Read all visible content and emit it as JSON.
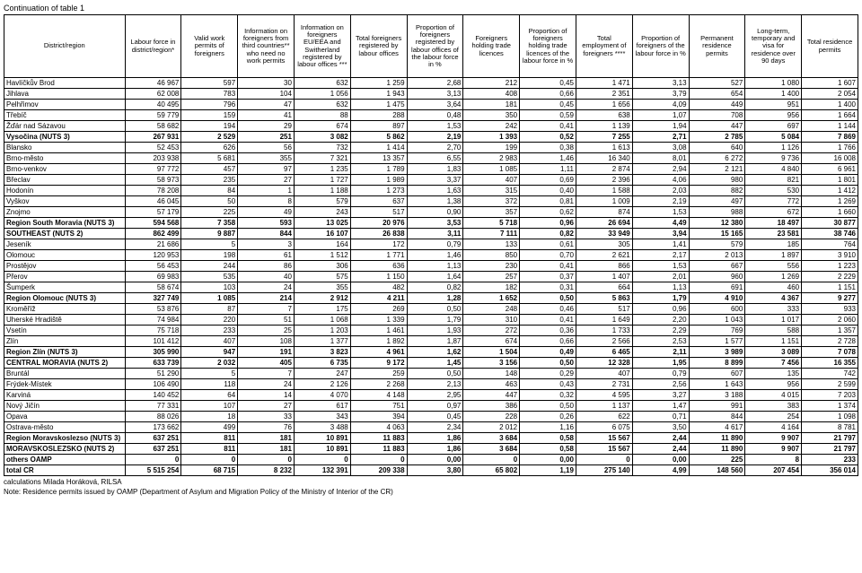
{
  "title": "Continuation of table 1",
  "columns": [
    "District/region",
    "Labour force in district/region*",
    "Valid work permits of foreigners",
    "Information on foreigners from third countries** who need no work permits",
    "Information on foreigners EU/EEA and Switherland registered by labour offices ***",
    "Total foreigners registered by labour offices",
    "Proportion of foreigners registered by labour offices of the labour force in %",
    "Foreigners holding trade licences",
    "Proportion of foreigners holding trade licences of the labour force in %",
    "Total employment of foreigners ****",
    "Proportion of foreigners of the labour force in %",
    "Permanent residence permits",
    "Long-term, temporary and visa for residence over 90 days",
    "Total residence permits"
  ],
  "rows": [
    {
      "b": false,
      "c": [
        "Havlíčkův Brod",
        "46 967",
        "597",
        "30",
        "632",
        "1 259",
        "2,68",
        "212",
        "0,45",
        "1 471",
        "3,13",
        "527",
        "1 080",
        "1 607"
      ]
    },
    {
      "b": false,
      "c": [
        "Jihlava",
        "62 008",
        "783",
        "104",
        "1 056",
        "1 943",
        "3,13",
        "408",
        "0,66",
        "2 351",
        "3,79",
        "654",
        "1 400",
        "2 054"
      ]
    },
    {
      "b": false,
      "c": [
        "Pelhřimov",
        "40 495",
        "796",
        "47",
        "632",
        "1 475",
        "3,64",
        "181",
        "0,45",
        "1 656",
        "4,09",
        "449",
        "951",
        "1 400"
      ]
    },
    {
      "b": false,
      "c": [
        "Třebíč",
        "59 779",
        "159",
        "41",
        "88",
        "288",
        "0,48",
        "350",
        "0,59",
        "638",
        "1,07",
        "708",
        "956",
        "1 664"
      ]
    },
    {
      "b": false,
      "c": [
        "Žďár nad Sázavou",
        "58 682",
        "194",
        "29",
        "674",
        "897",
        "1,53",
        "242",
        "0,41",
        "1 139",
        "1,94",
        "447",
        "697",
        "1 144"
      ]
    },
    {
      "b": true,
      "c": [
        "Vysočina (NUTS 3)",
        "267 931",
        "2 529",
        "251",
        "3 082",
        "5 862",
        "2,19",
        "1 393",
        "0,52",
        "7 255",
        "2,71",
        "2 785",
        "5 084",
        "7 869"
      ]
    },
    {
      "b": false,
      "c": [
        "Blansko",
        "52 453",
        "626",
        "56",
        "732",
        "1 414",
        "2,70",
        "199",
        "0,38",
        "1 613",
        "3,08",
        "640",
        "1 126",
        "1 766"
      ]
    },
    {
      "b": false,
      "c": [
        "Brno-město",
        "203 938",
        "5 681",
        "355",
        "7 321",
        "13 357",
        "6,55",
        "2 983",
        "1,46",
        "16 340",
        "8,01",
        "6 272",
        "9 736",
        "16 008"
      ]
    },
    {
      "b": false,
      "c": [
        "Brno-venkov",
        "97 772",
        "457",
        "97",
        "1 235",
        "1 789",
        "1,83",
        "1 085",
        "1,11",
        "2 874",
        "2,94",
        "2 121",
        "4 840",
        "6 961"
      ]
    },
    {
      "b": false,
      "c": [
        "Břeclav",
        "58 973",
        "235",
        "27",
        "1 727",
        "1 989",
        "3,37",
        "407",
        "0,69",
        "2 396",
        "4,06",
        "980",
        "821",
        "1 801"
      ]
    },
    {
      "b": false,
      "c": [
        "Hodonín",
        "78 208",
        "84",
        "1",
        "1 188",
        "1 273",
        "1,63",
        "315",
        "0,40",
        "1 588",
        "2,03",
        "882",
        "530",
        "1 412"
      ]
    },
    {
      "b": false,
      "c": [
        "Vyškov",
        "46 045",
        "50",
        "8",
        "579",
        "637",
        "1,38",
        "372",
        "0,81",
        "1 009",
        "2,19",
        "497",
        "772",
        "1 269"
      ]
    },
    {
      "b": false,
      "c": [
        "Znojmo",
        "57 179",
        "225",
        "49",
        "243",
        "517",
        "0,90",
        "357",
        "0,62",
        "874",
        "1,53",
        "988",
        "672",
        "1 660"
      ]
    },
    {
      "b": true,
      "c": [
        "Region South Moravia (NUTS 3)",
        "594 568",
        "7 358",
        "593",
        "13 025",
        "20 976",
        "3,53",
        "5 718",
        "0,96",
        "26 694",
        "4,49",
        "12 380",
        "18 497",
        "30 877"
      ]
    },
    {
      "b": true,
      "c": [
        "SOUTHEAST (NUTS 2)",
        "862 499",
        "9 887",
        "844",
        "16 107",
        "26 838",
        "3,11",
        "7 111",
        "0,82",
        "33 949",
        "3,94",
        "15 165",
        "23 581",
        "38 746"
      ]
    },
    {
      "b": false,
      "c": [
        "Jeseník",
        "21 686",
        "5",
        "3",
        "164",
        "172",
        "0,79",
        "133",
        "0,61",
        "305",
        "1,41",
        "579",
        "185",
        "764"
      ]
    },
    {
      "b": false,
      "c": [
        "Olomouc",
        "120 953",
        "198",
        "61",
        "1 512",
        "1 771",
        "1,46",
        "850",
        "0,70",
        "2 621",
        "2,17",
        "2 013",
        "1 897",
        "3 910"
      ]
    },
    {
      "b": false,
      "c": [
        "Prostějov",
        "56 453",
        "244",
        "86",
        "306",
        "636",
        "1,13",
        "230",
        "0,41",
        "866",
        "1,53",
        "667",
        "556",
        "1 223"
      ]
    },
    {
      "b": false,
      "c": [
        "Přerov",
        "69 983",
        "535",
        "40",
        "575",
        "1 150",
        "1,64",
        "257",
        "0,37",
        "1 407",
        "2,01",
        "960",
        "1 269",
        "2 229"
      ]
    },
    {
      "b": false,
      "c": [
        "Šumperk",
        "58 674",
        "103",
        "24",
        "355",
        "482",
        "0,82",
        "182",
        "0,31",
        "664",
        "1,13",
        "691",
        "460",
        "1 151"
      ]
    },
    {
      "b": true,
      "c": [
        "Region Olomouc (NUTS 3)",
        "327 749",
        "1 085",
        "214",
        "2 912",
        "4 211",
        "1,28",
        "1 652",
        "0,50",
        "5 863",
        "1,79",
        "4 910",
        "4 367",
        "9 277"
      ]
    },
    {
      "b": false,
      "c": [
        "Kroměříž",
        "53 876",
        "87",
        "7",
        "175",
        "269",
        "0,50",
        "248",
        "0,46",
        "517",
        "0,96",
        "600",
        "333",
        "933"
      ]
    },
    {
      "b": false,
      "c": [
        "Uherské Hradiště",
        "74 984",
        "220",
        "51",
        "1 068",
        "1 339",
        "1,79",
        "310",
        "0,41",
        "1 649",
        "2,20",
        "1 043",
        "1 017",
        "2 060"
      ]
    },
    {
      "b": false,
      "c": [
        "Vsetín",
        "75 718",
        "233",
        "25",
        "1 203",
        "1 461",
        "1,93",
        "272",
        "0,36",
        "1 733",
        "2,29",
        "769",
        "588",
        "1 357"
      ]
    },
    {
      "b": false,
      "c": [
        "Zlín",
        "101 412",
        "407",
        "108",
        "1 377",
        "1 892",
        "1,87",
        "674",
        "0,66",
        "2 566",
        "2,53",
        "1 577",
        "1 151",
        "2 728"
      ]
    },
    {
      "b": true,
      "c": [
        "Region Zlín (NUTS 3)",
        "305 990",
        "947",
        "191",
        "3 823",
        "4 961",
        "1,62",
        "1 504",
        "0,49",
        "6 465",
        "2,11",
        "3 989",
        "3 089",
        "7 078"
      ]
    },
    {
      "b": true,
      "c": [
        "CENTRAL MORAVIA (NUTS 2)",
        "633 739",
        "2 032",
        "405",
        "6 735",
        "9 172",
        "1,45",
        "3 156",
        "0,50",
        "12 328",
        "1,95",
        "8 899",
        "7 456",
        "16 355"
      ]
    },
    {
      "b": false,
      "c": [
        "Bruntál",
        "51 290",
        "5",
        "7",
        "247",
        "259",
        "0,50",
        "148",
        "0,29",
        "407",
        "0,79",
        "607",
        "135",
        "742"
      ]
    },
    {
      "b": false,
      "c": [
        "Frýdek-Místek",
        "106 490",
        "118",
        "24",
        "2 126",
        "2 268",
        "2,13",
        "463",
        "0,43",
        "2 731",
        "2,56",
        "1 643",
        "956",
        "2 599"
      ]
    },
    {
      "b": false,
      "c": [
        "Karviná",
        "140 452",
        "64",
        "14",
        "4 070",
        "4 148",
        "2,95",
        "447",
        "0,32",
        "4 595",
        "3,27",
        "3 188",
        "4 015",
        "7 203"
      ]
    },
    {
      "b": false,
      "c": [
        "Nový Jičín",
        "77 331",
        "107",
        "27",
        "617",
        "751",
        "0,97",
        "386",
        "0,50",
        "1 137",
        "1,47",
        "991",
        "383",
        "1 374"
      ]
    },
    {
      "b": false,
      "c": [
        "Opava",
        "88 026",
        "18",
        "33",
        "343",
        "394",
        "0,45",
        "228",
        "0,26",
        "622",
        "0,71",
        "844",
        "254",
        "1 098"
      ]
    },
    {
      "b": false,
      "c": [
        "Ostrava-město",
        "173 662",
        "499",
        "76",
        "3 488",
        "4 063",
        "2,34",
        "2 012",
        "1,16",
        "6 075",
        "3,50",
        "4 617",
        "4 164",
        "8 781"
      ]
    },
    {
      "b": true,
      "c": [
        "Region Moravskoslezso (NUTS 3)",
        "637 251",
        "811",
        "181",
        "10 891",
        "11 883",
        "1,86",
        "3 684",
        "0,58",
        "15 567",
        "2,44",
        "11 890",
        "9 907",
        "21 797"
      ]
    },
    {
      "b": true,
      "c": [
        "MORAVSKOSLEZSKO (NUTS 2)",
        "637 251",
        "811",
        "181",
        "10 891",
        "11 883",
        "1,86",
        "3 684",
        "0,58",
        "15 567",
        "2,44",
        "11 890",
        "9 907",
        "21 797"
      ]
    },
    {
      "b": true,
      "c": [
        "others OAMP",
        "0",
        "0",
        "0",
        "0",
        "0",
        "0,00",
        "0",
        "0,00",
        "0",
        "0,00",
        "225",
        "8",
        "233"
      ]
    },
    {
      "b": true,
      "c": [
        "total CR",
        "5 515 254",
        "68 715",
        "8 232",
        "132 391",
        "209 338",
        "3,80",
        "65 802",
        "1,19",
        "275 140",
        "4,99",
        "148 560",
        "207 454",
        "356 014"
      ]
    }
  ],
  "footnotes": [
    "calculations Milada Horáková, RILSA",
    "Note: Residence permits issued by OAMP (Department of Asylum and Migration Policy of the Ministry of Interior of the CR)"
  ]
}
